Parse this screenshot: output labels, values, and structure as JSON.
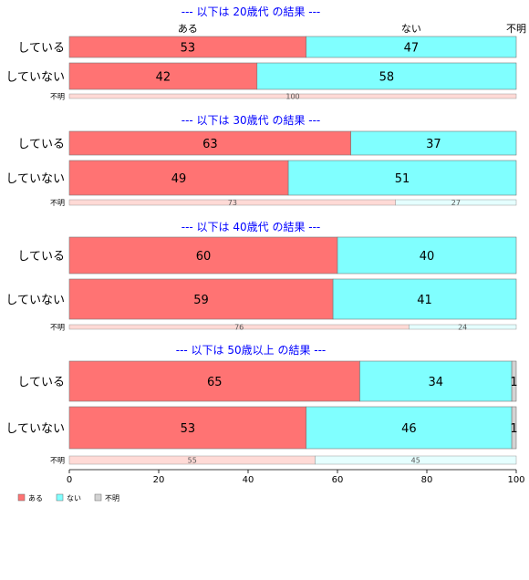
{
  "colors": {
    "aru": "#ff7373",
    "nai": "#80ffff",
    "fumei": "#d3d3d3",
    "aru_light": "#ffdad6",
    "nai_light": "#e5ffff",
    "fumei_light": "#eeeeee",
    "title": "#0000ff"
  },
  "top_headers": {
    "aru": "ある",
    "nai": "ない",
    "fumei": "不明"
  },
  "chart_data": {
    "type": "bar",
    "orientation": "horizontal-stacked",
    "xlim": [
      0,
      100
    ],
    "xticks": [
      0,
      20,
      40,
      60,
      80,
      100
    ],
    "series_names": [
      "ある",
      "ない",
      "不明"
    ],
    "panels": [
      {
        "title": "--- 以下は 20歳代 の結果 ---",
        "rows": [
          {
            "label": "している",
            "values": [
              53,
              47,
              0
            ]
          },
          {
            "label": "していない",
            "values": [
              42,
              58,
              0
            ]
          }
        ],
        "fumei_row": {
          "label": "不明",
          "values": [
            100,
            0,
            0
          ]
        }
      },
      {
        "title": "--- 以下は 30歳代 の結果 ---",
        "rows": [
          {
            "label": "している",
            "values": [
              63,
              37,
              0
            ]
          },
          {
            "label": "していない",
            "values": [
              49,
              51,
              0
            ]
          }
        ],
        "fumei_row": {
          "label": "不明",
          "values": [
            73,
            27,
            0
          ]
        }
      },
      {
        "title": "--- 以下は 40歳代 の結果 ---",
        "rows": [
          {
            "label": "している",
            "values": [
              60,
              40,
              0
            ]
          },
          {
            "label": "していない",
            "values": [
              59,
              41,
              0
            ]
          }
        ],
        "fumei_row": {
          "label": "不明",
          "values": [
            76,
            24,
            0
          ]
        }
      },
      {
        "title": "--- 以下は 50歳以上 の結果 ---",
        "rows": [
          {
            "label": "している",
            "values": [
              65,
              34,
              1
            ]
          },
          {
            "label": "していない",
            "values": [
              53,
              46,
              1
            ]
          }
        ],
        "fumei_row": {
          "label": "不明",
          "values": [
            55,
            45,
            0
          ]
        }
      }
    ],
    "legend": {
      "position": "bottom-left",
      "items": [
        "ある",
        "ない",
        "不明"
      ]
    }
  }
}
